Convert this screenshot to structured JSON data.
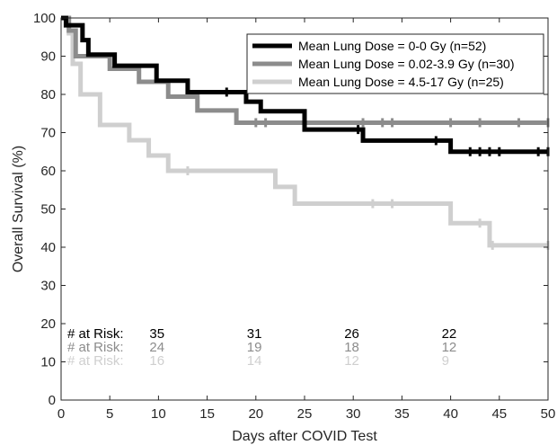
{
  "chart_data": {
    "type": "line",
    "subtype": "kaplan-meier step",
    "xlabel": "Days after COVID Test",
    "ylabel": "Overall Survival (%)",
    "xlim": [
      0,
      50
    ],
    "ylim": [
      0,
      100
    ],
    "xticks": [
      0,
      5,
      10,
      15,
      20,
      25,
      30,
      35,
      40,
      45,
      50
    ],
    "yticks": [
      0,
      10,
      20,
      30,
      40,
      50,
      60,
      70,
      80,
      90,
      100
    ],
    "grid": false,
    "legend_position": "top-right",
    "series": [
      {
        "name": "Mean Lung Dose = 0-0 Gy (n=52)",
        "color": "#000000",
        "steps": [
          [
            0,
            100
          ],
          [
            0.5,
            98.1
          ],
          [
            2.2,
            94.2
          ],
          [
            2.8,
            90.4
          ],
          [
            5.5,
            87.5
          ],
          [
            9.8,
            83.6
          ],
          [
            13,
            80.6
          ],
          [
            19,
            78.1
          ],
          [
            20.5,
            75.6
          ],
          [
            25,
            70.8
          ],
          [
            31,
            67.9
          ],
          [
            40,
            65.0
          ],
          [
            50,
            65.0
          ]
        ],
        "censored": [
          [
            17,
            80.6
          ],
          [
            30.5,
            70.8
          ],
          [
            38.5,
            67.9
          ],
          [
            42,
            65.0
          ],
          [
            43,
            65.0
          ],
          [
            44,
            65.0
          ],
          [
            45,
            65.0
          ],
          [
            49,
            65.0
          ],
          [
            50,
            65.0
          ]
        ]
      },
      {
        "name": "Mean Lung Dose = 0.02-3.9 Gy (n=30)",
        "color": "#8c8c8c",
        "steps": [
          [
            0,
            100
          ],
          [
            0.8,
            96.7
          ],
          [
            1.5,
            90.0
          ],
          [
            5,
            86.7
          ],
          [
            8,
            83.3
          ],
          [
            11,
            79.4
          ],
          [
            14,
            75.8
          ],
          [
            18,
            72.6
          ],
          [
            50,
            72.6
          ]
        ],
        "censored": [
          [
            20,
            72.6
          ],
          [
            21,
            72.6
          ],
          [
            31,
            72.6
          ],
          [
            33,
            72.6
          ],
          [
            34,
            72.6
          ],
          [
            40,
            72.6
          ],
          [
            43,
            72.6
          ],
          [
            47,
            72.6
          ],
          [
            50,
            72.6
          ]
        ]
      },
      {
        "name": "Mean Lung Dose = 4.5-17 Gy (n=25)",
        "color": "#cfcfcf",
        "steps": [
          [
            0,
            100
          ],
          [
            0.8,
            96.0
          ],
          [
            1.2,
            88.0
          ],
          [
            2,
            80.0
          ],
          [
            4,
            72.0
          ],
          [
            7,
            68.0
          ],
          [
            9,
            64.0
          ],
          [
            11,
            60.0
          ],
          [
            22,
            55.8
          ],
          [
            24,
            51.4
          ],
          [
            40,
            46.3
          ],
          [
            44,
            40.5
          ],
          [
            50,
            40.5
          ]
        ],
        "censored": [
          [
            13,
            60.0
          ],
          [
            32,
            51.4
          ],
          [
            34,
            51.4
          ],
          [
            43,
            46.3
          ],
          [
            44.3,
            40.5
          ],
          [
            50,
            40.5
          ]
        ]
      }
    ],
    "risk_table": {
      "label": "# at Risk:",
      "times": [
        10,
        20,
        30,
        40
      ],
      "rows": [
        {
          "color": "#000000",
          "values": [
            "35",
            "31",
            "26",
            "22"
          ]
        },
        {
          "color": "#8c8c8c",
          "values": [
            "24",
            "19",
            "18",
            "12"
          ]
        },
        {
          "color": "#cfcfcf",
          "values": [
            "16",
            "14",
            "12",
            "9"
          ]
        }
      ]
    }
  }
}
